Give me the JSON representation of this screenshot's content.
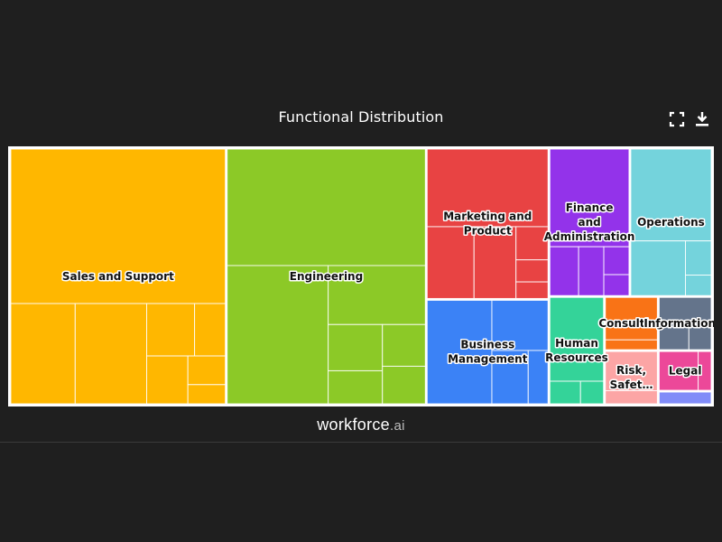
{
  "header": {
    "title": "Functional Distribution"
  },
  "toolbar": {
    "fullscreen": {
      "icon": "fullscreen-icon"
    },
    "download": {
      "icon": "download-icon"
    }
  },
  "brand": {
    "name": "workforce",
    "suffix": ".ai"
  },
  "chart_data": {
    "type": "treemap",
    "title": "Functional Distribution",
    "units": "relative share (estimated from tile areas)",
    "categories": [
      {
        "label": "Sales and Support",
        "color": "#FFB700",
        "value": 30.5,
        "children": [
          18.5,
          3.6,
          4.0,
          1.4,
          0.9,
          1.1,
          0.6,
          0.4
        ]
      },
      {
        "label": "Engineering",
        "color": "#8CC927",
        "value": 28.2,
        "children": [
          12.9,
          7.8,
          3.2,
          1.4,
          1.0,
          1.0,
          0.9
        ]
      },
      {
        "label": "Marketing and Product",
        "color": "#E84343",
        "value": 10.2,
        "children": [
          5.3,
          1.9,
          1.7,
          0.6,
          0.4,
          0.3
        ]
      },
      {
        "label": "Business Management",
        "color": "#3B82F6",
        "value": 7.1,
        "children": [
          3.8,
          1.6,
          1.1,
          0.6
        ]
      },
      {
        "label": "Finance and Administration",
        "color": "#9333EA",
        "value": 6.6,
        "children": [
          4.4,
          0.8,
          0.7,
          0.4,
          0.3
        ]
      },
      {
        "label": "Operations",
        "color": "#74D3DC",
        "value": 6.7,
        "children": [
          4.2,
          1.7,
          0.5,
          0.3
        ]
      },
      {
        "label": "Human Resources",
        "color": "#34D399",
        "value": 3.3,
        "children": [
          2.6,
          0.4,
          0.3
        ]
      },
      {
        "label": "Consulting",
        "color": "#F97316",
        "value": 1.6,
        "children": [
          1.3,
          0.3
        ]
      },
      {
        "label": "Information…",
        "color": "#64748B",
        "value": 1.6,
        "children": [
          0.9,
          0.4,
          0.3
        ]
      },
      {
        "label": "Risk, Safet…",
        "color": "#FCA5A5",
        "value": 1.6,
        "children": [
          1.2,
          0.4
        ]
      },
      {
        "label": "Legal",
        "color": "#EC4899",
        "value": 1.2,
        "children": [
          0.9,
          0.3
        ]
      },
      {
        "label": "",
        "color": "#818CF8",
        "value": 0.4,
        "children": [
          0.4
        ]
      }
    ]
  }
}
